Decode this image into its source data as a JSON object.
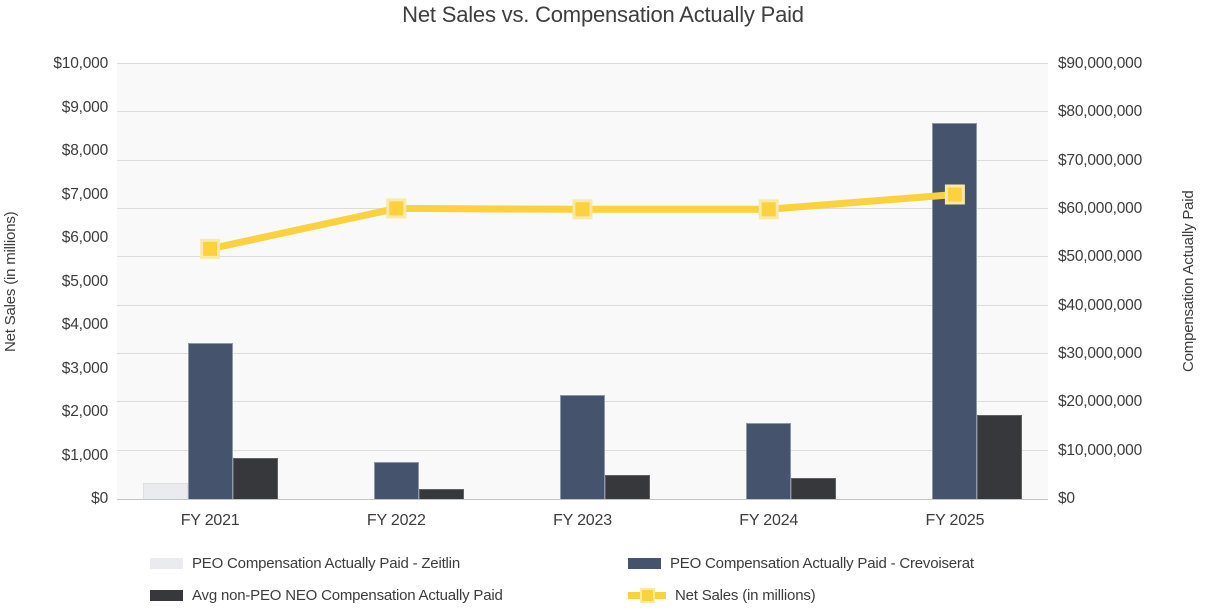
{
  "title": "Net Sales vs. Compensation Actually Paid",
  "chart_data": {
    "type": "bar",
    "subtype": "grouped-bars-with-line-overlay",
    "categories": [
      "FY 2021",
      "FY 2022",
      "FY 2023",
      "FY 2024",
      "FY 2025"
    ],
    "series": [
      {
        "kind": "bar",
        "axis": "right",
        "name": "PEO Compensation Actually Paid - Zeitlin",
        "color": "#e9ebee",
        "border": "#dcdee3",
        "values": [
          3300000,
          0,
          0,
          0,
          0
        ]
      },
      {
        "kind": "bar",
        "axis": "right",
        "name": "PEO Compensation Actually Paid - Crevoiserat",
        "color": "#46536c",
        "border": "#8b97aa",
        "values": [
          32200000,
          7600000,
          21600000,
          15800000,
          77800000
        ]
      },
      {
        "kind": "bar",
        "axis": "right",
        "name": "Avg non-PEO NEO Compensation Actually Paid",
        "color": "#36383b",
        "border": "#5f6165",
        "values": [
          8400000,
          2000000,
          4900000,
          4400000,
          17400000
        ]
      },
      {
        "kind": "line",
        "axis": "left",
        "name": "Net Sales (in millions)",
        "color": "#fcd13e",
        "marker": "square",
        "marker_border": "#f9e8a6",
        "values": [
          5750,
          6680,
          6660,
          6660,
          7000
        ]
      }
    ],
    "left_axis": {
      "label": "Net Sales (in millions)",
      "min": 0,
      "max": 10000,
      "step": 1000,
      "ticks": [
        "$0",
        "$1,000",
        "$2,000",
        "$3,000",
        "$4,000",
        "$5,000",
        "$6,000",
        "$7,000",
        "$8,000",
        "$9,000",
        "$10,000"
      ]
    },
    "right_axis": {
      "label": "Compensation Actually Paid",
      "min": 0,
      "max": 90000000,
      "step": 10000000,
      "ticks": [
        "$0",
        "$10,000,000",
        "$20,000,000",
        "$30,000,000",
        "$40,000,000",
        "$50,000,000",
        "$60,000,000",
        "$70,000,000",
        "$80,000,000",
        "$90,000,000"
      ]
    },
    "grid": "horizontal gridlines aligned to right axis",
    "plot_bg": "#f9f9f9",
    "gridline_color": "#dbdbdb",
    "legend_position": "bottom"
  },
  "legend": {
    "items": [
      {
        "label": "PEO Compensation Actually Paid - Zeitlin",
        "type": "bar",
        "color": "#e9ebee"
      },
      {
        "label": "PEO Compensation Actually Paid - Crevoiserat",
        "type": "bar",
        "color": "#46536c"
      },
      {
        "label": "Avg non-PEO NEO Compensation Actually Paid",
        "type": "bar",
        "color": "#36383b"
      },
      {
        "label": "Net Sales (in millions)",
        "type": "line",
        "color": "#fcd13e"
      }
    ]
  }
}
